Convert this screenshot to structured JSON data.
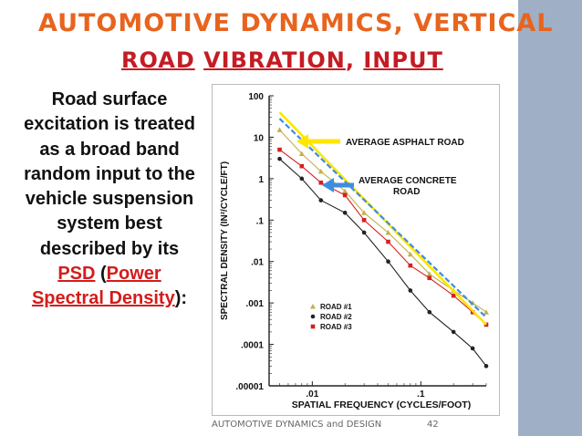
{
  "slide": {
    "title_line1": "AUTOMOTIVE DYNAMICS, VERTICAL",
    "title_line2": [
      "ROAD",
      "VIBRATION",
      "INPUT"
    ],
    "title_sep": ",",
    "body_parts": [
      {
        "text": "Road surface excitation is treated as a broad band random input to the vehicle suspension system best described by its ",
        "style": ""
      },
      {
        "text": "PSD",
        "style": "red u"
      },
      {
        "text": " (",
        "style": ""
      },
      {
        "text": "Power Spectral Density",
        "style": "red u"
      },
      {
        "text": "):",
        "style": ""
      }
    ],
    "footer": "AUTOMOTIVE DYNAMICS and DESIGN",
    "page_number": "42",
    "colors": {
      "accent": "#e8641e",
      "title_red": "#c41c24",
      "body_red": "#d41c1c",
      "sidebar": "#9fb0c6"
    }
  },
  "figure": {
    "ylabel": "SPECTRAL DENSITY (IN²/CYCLE/FT)",
    "xlabel": "SPATIAL FREQUENCY (CYCLES/FOOT)",
    "y_ticks": [
      "100",
      "10",
      "1",
      ".1",
      ".01",
      ".001",
      ".0001",
      ".00001"
    ],
    "x_ticks": [
      ".01",
      ".1"
    ],
    "annotations": [
      {
        "text": "AVERAGE ASPHALT ROAD",
        "arrow_color": "#ffe600"
      },
      {
        "text": "AVERAGE CONCRETE\nROAD",
        "arrow_color": "#3c8de0"
      }
    ],
    "legend": [
      "ROAD #1",
      "ROAD #2",
      "ROAD #3"
    ],
    "legend_markers": [
      "triangle",
      "circle",
      "square"
    ],
    "legend_colors": [
      "#c4b04a",
      "#222222",
      "#d42020"
    ],
    "line_colors": {
      "asphalt": "#ffe600",
      "concrete": "#3c8de0"
    }
  },
  "chart_data": {
    "type": "line",
    "title": "",
    "xlabel": "SPATIAL FREQUENCY (CYCLES/FOOT)",
    "ylabel": "SPECTRAL DENSITY (IN²/CYCLE/FT)",
    "x_scale": "log",
    "y_scale": "log",
    "xlim": [
      0.004,
      0.4
    ],
    "ylim": [
      1e-05,
      100
    ],
    "series": [
      {
        "name": "AVERAGE ASPHALT ROAD",
        "x": [
          0.005,
          0.4
        ],
        "y": [
          40,
          0.0003
        ]
      },
      {
        "name": "AVERAGE CONCRETE ROAD",
        "x": [
          0.005,
          0.4
        ],
        "y": [
          28,
          0.00045
        ]
      },
      {
        "name": "ROAD #1",
        "x": [
          0.005,
          0.008,
          0.012,
          0.02,
          0.03,
          0.05,
          0.08,
          0.12,
          0.2,
          0.3,
          0.4
        ],
        "y": [
          15,
          4,
          1.5,
          0.5,
          0.15,
          0.05,
          0.015,
          0.005,
          0.002,
          0.001,
          0.0006
        ]
      },
      {
        "name": "ROAD #2",
        "x": [
          0.005,
          0.008,
          0.012,
          0.02,
          0.03,
          0.05,
          0.08,
          0.12,
          0.2,
          0.3,
          0.4
        ],
        "y": [
          3,
          1,
          0.3,
          0.15,
          0.05,
          0.01,
          0.002,
          0.0006,
          0.0002,
          8e-05,
          3e-05
        ]
      },
      {
        "name": "ROAD #3",
        "x": [
          0.005,
          0.008,
          0.012,
          0.02,
          0.03,
          0.05,
          0.08,
          0.12,
          0.2,
          0.3,
          0.4
        ],
        "y": [
          5,
          2,
          0.8,
          0.4,
          0.1,
          0.03,
          0.008,
          0.004,
          0.0015,
          0.0006,
          0.0003
        ]
      }
    ],
    "grid": false,
    "legend_position": "bottom-right"
  }
}
